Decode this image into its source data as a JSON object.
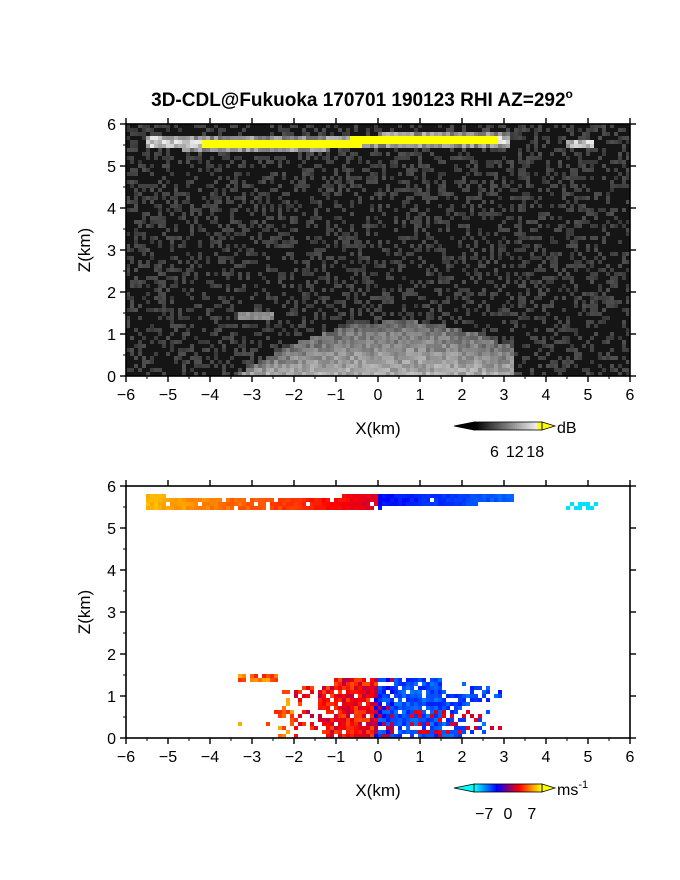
{
  "chart_data": [
    {
      "type": "heatmap",
      "quantity": "reflectivity",
      "title": "3D-CDL@Fukuoka 170701 190123 RHI AZ=292",
      "title_suffix": "o",
      "xlabel": "X(km)",
      "ylabel": "Z(km)",
      "xlim": [
        -6,
        6
      ],
      "ylim": [
        0,
        6
      ],
      "xticks": [
        "-6",
        "-5",
        "-4",
        "-3",
        "-2",
        "-1",
        "0",
        "1",
        "2",
        "3",
        "4",
        "5",
        "6"
      ],
      "yticks": [
        "0",
        "1",
        "2",
        "3",
        "4",
        "5",
        "6"
      ],
      "colorbar": {
        "unit": "dB",
        "ticks": [
          "6",
          "12",
          "18"
        ],
        "tick_values": [
          6,
          12,
          18
        ],
        "range": [
          0,
          20
        ],
        "colors": [
          "#000000",
          "#ffffff",
          "#ffff00"
        ]
      },
      "features": [
        {
          "name": "cloud layer",
          "x_range": [
            -5.5,
            3.1
          ],
          "z_range": [
            5.45,
            5.75
          ],
          "value_db": 20
        },
        {
          "name": "cloud fragment",
          "x_range": [
            4.5,
            5.1
          ],
          "z_range": [
            5.45,
            5.6
          ],
          "value_db": 14
        },
        {
          "name": "boundary layer echo",
          "x_range": [
            -3.3,
            3.2
          ],
          "z_range": [
            0,
            1.5
          ],
          "value_db": 12
        }
      ]
    },
    {
      "type": "heatmap",
      "quantity": "doppler velocity",
      "xlabel": "X(km)",
      "ylabel": "Z(km)",
      "xlim": [
        -6,
        6
      ],
      "ylim": [
        0,
        6
      ],
      "xticks": [
        "-6",
        "-5",
        "-4",
        "-3",
        "-2",
        "-1",
        "0",
        "1",
        "2",
        "3",
        "4",
        "5",
        "6"
      ],
      "yticks": [
        "0",
        "1",
        "2",
        "3",
        "4",
        "5",
        "6"
      ],
      "colorbar": {
        "unit": "ms",
        "unit_exponent": "-1",
        "ticks": [
          "-7",
          "0",
          "7"
        ],
        "tick_values": [
          -7,
          0,
          7
        ],
        "range": [
          -10,
          10
        ],
        "colors": [
          "#00ffff",
          "#0000ff",
          "#ff0000",
          "#ffff00"
        ]
      },
      "features": [
        {
          "name": "cloud layer velocity",
          "x_range": [
            -5.5,
            3.2
          ],
          "z_range": [
            5.45,
            5.8
          ],
          "velocity_ms": [
            8,
            -5
          ]
        },
        {
          "name": "cloud fragment velocity",
          "x_range": [
            4.5,
            5.2
          ],
          "z_range": [
            5.45,
            5.6
          ],
          "velocity_ms": -9
        },
        {
          "name": "boundary layer velocity",
          "x_range": [
            -3.3,
            3.0
          ],
          "z_range": [
            0,
            1.5
          ],
          "velocity_ms": [
            4,
            -5
          ]
        }
      ]
    }
  ]
}
